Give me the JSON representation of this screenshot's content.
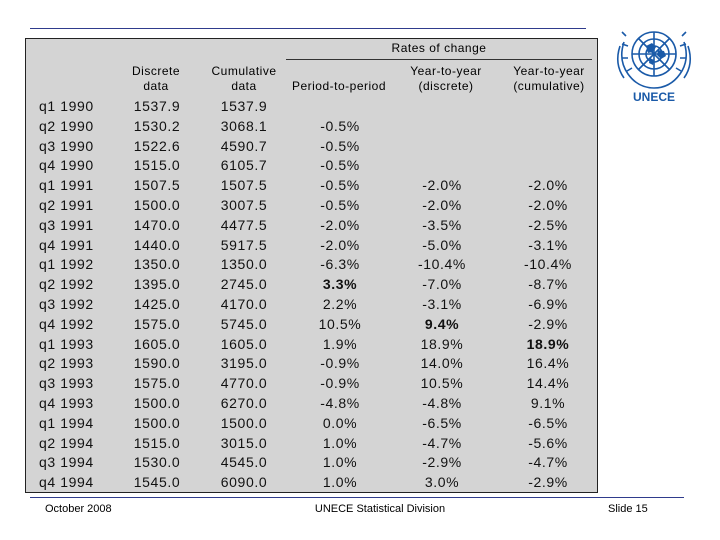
{
  "header": {
    "group": "Rates of change",
    "columns": [
      {
        "line1": "Discrete",
        "line2": "data"
      },
      {
        "line1": "Cumulative",
        "line2": "data"
      },
      {
        "line1": "",
        "line2": "Period-to-period"
      },
      {
        "line1": "Year-to-year",
        "line2": "(discrete)"
      },
      {
        "line1": "Year-to-year",
        "line2": "(cumulative)"
      }
    ]
  },
  "rows": [
    {
      "period": "q1 1990",
      "disc": "1537.9",
      "cum": "1537.9",
      "p2p": "",
      "yoyd": "",
      "yoyc": ""
    },
    {
      "period": "q2 1990",
      "disc": "1530.2",
      "cum": "3068.1",
      "p2p": "-0.5%",
      "yoyd": "",
      "yoyc": ""
    },
    {
      "period": "q3 1990",
      "disc": "1522.6",
      "cum": "4590.7",
      "p2p": "-0.5%",
      "yoyd": "",
      "yoyc": ""
    },
    {
      "period": "q4 1990",
      "disc": "1515.0",
      "cum": "6105.7",
      "p2p": "-0.5%",
      "yoyd": "",
      "yoyc": ""
    },
    {
      "period": "q1 1991",
      "disc": "1507.5",
      "cum": "1507.5",
      "p2p": "-0.5%",
      "yoyd": "-2.0%",
      "yoyc": "-2.0%"
    },
    {
      "period": "q2 1991",
      "disc": "1500.0",
      "cum": "3007.5",
      "p2p": "-0.5%",
      "yoyd": "-2.0%",
      "yoyc": "-2.0%"
    },
    {
      "period": "q3 1991",
      "disc": "1470.0",
      "cum": "4477.5",
      "p2p": "-2.0%",
      "yoyd": "-3.5%",
      "yoyc": "-2.5%"
    },
    {
      "period": "q4 1991",
      "disc": "1440.0",
      "cum": "5917.5",
      "p2p": "-2.0%",
      "yoyd": "-5.0%",
      "yoyc": "-3.1%"
    },
    {
      "period": "q1 1992",
      "disc": "1350.0",
      "cum": "1350.0",
      "p2p": "-6.3%",
      "yoyd": "-10.4%",
      "yoyc": "-10.4%"
    },
    {
      "period": "q2 1992",
      "disc": "1395.0",
      "cum": "2745.0",
      "p2p": "3.3%",
      "yoyd": "-7.0%",
      "yoyc": "-8.7%"
    },
    {
      "period": "q3 1992",
      "disc": "1425.0",
      "cum": "4170.0",
      "p2p": "2.2%",
      "yoyd": "-3.1%",
      "yoyc": "-6.9%"
    },
    {
      "period": "q4 1992",
      "disc": "1575.0",
      "cum": "5745.0",
      "p2p": "10.5%",
      "yoyd": "9.4%",
      "yoyc": "-2.9%"
    },
    {
      "period": "q1 1993",
      "disc": "1605.0",
      "cum": "1605.0",
      "p2p": "1.9%",
      "yoyd": "18.9%",
      "yoyc": "18.9%"
    },
    {
      "period": "q2 1993",
      "disc": "1590.0",
      "cum": "3195.0",
      "p2p": "-0.9%",
      "yoyd": "14.0%",
      "yoyc": "16.4%"
    },
    {
      "period": "q3 1993",
      "disc": "1575.0",
      "cum": "4770.0",
      "p2p": "-0.9%",
      "yoyd": "10.5%",
      "yoyc": "14.4%"
    },
    {
      "period": "q4 1993",
      "disc": "1500.0",
      "cum": "6270.0",
      "p2p": "-4.8%",
      "yoyd": "-4.8%",
      "yoyc": "9.1%"
    },
    {
      "period": "q1 1994",
      "disc": "1500.0",
      "cum": "1500.0",
      "p2p": "0.0%",
      "yoyd": "-6.5%",
      "yoyc": "-6.5%"
    },
    {
      "period": "q2 1994",
      "disc": "1515.0",
      "cum": "3015.0",
      "p2p": "1.0%",
      "yoyd": "-4.7%",
      "yoyc": "-5.6%"
    },
    {
      "period": "q3 1994",
      "disc": "1530.0",
      "cum": "4545.0",
      "p2p": "1.0%",
      "yoyd": "-2.9%",
      "yoyc": "-4.7%"
    },
    {
      "period": "q4 1994",
      "disc": "1545.0",
      "cum": "6090.0",
      "p2p": "1.0%",
      "yoyd": "3.0%",
      "yoyc": "-2.9%"
    }
  ],
  "bold_cells": {
    "p2p": 9,
    "yoyd": 11,
    "yoyc": 12
  },
  "logo": {
    "text": "UNECE",
    "icon": "un-emblem-icon",
    "color": "#1a5aa8"
  },
  "footer": {
    "date": "October 2008",
    "center": "UNECE Statistical Division",
    "slide": "Slide 15"
  }
}
